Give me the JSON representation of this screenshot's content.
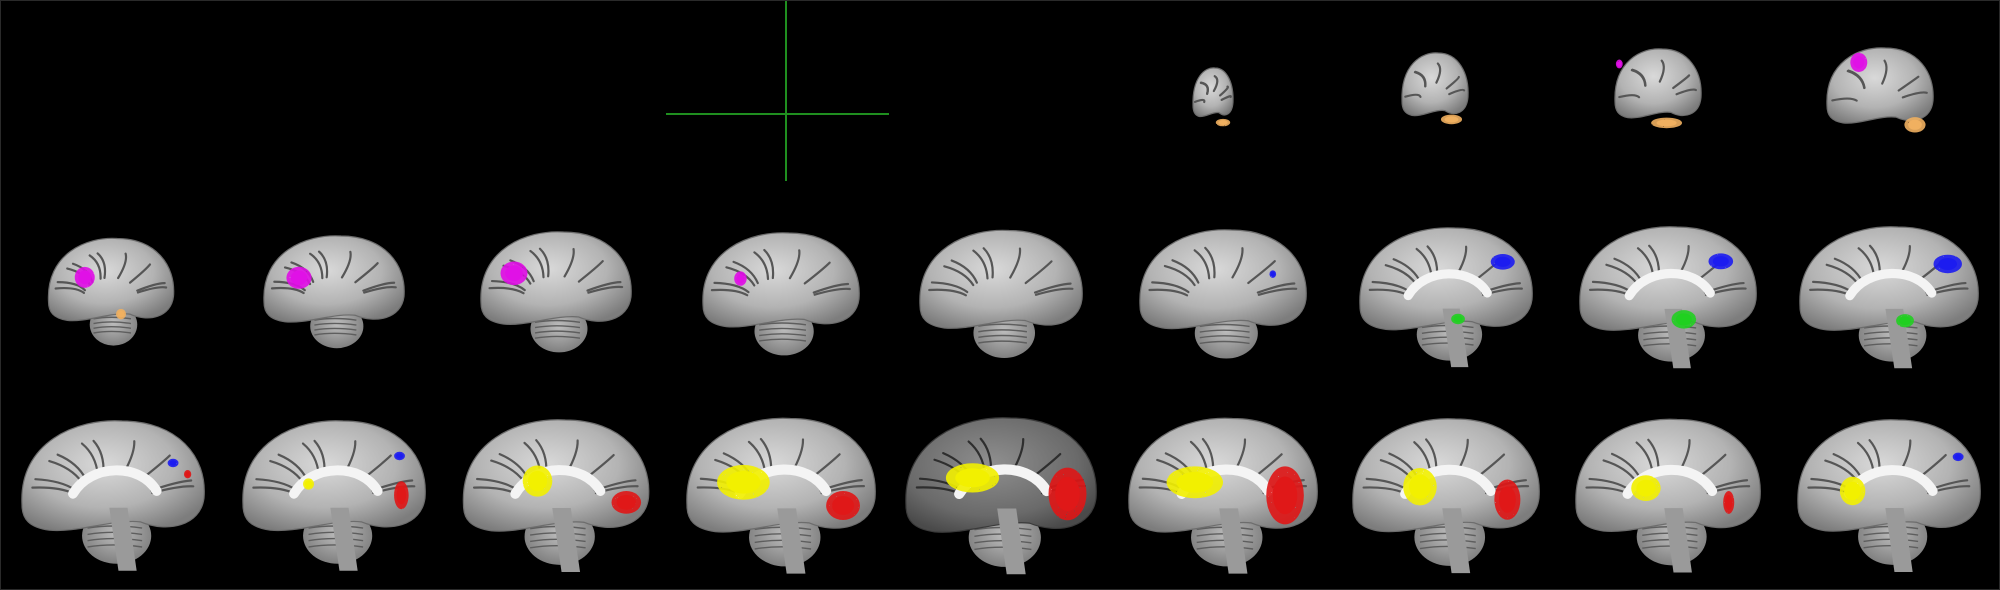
{
  "viewer": {
    "background": "#000000",
    "crosshair_color": "#1f8f1f",
    "overlay_colors": {
      "magenta": "#e011e6",
      "orange": "#f0b060",
      "blue": "#1c1cf0",
      "green": "#20d020",
      "yellow": "#f2f000",
      "red": "#e01818"
    },
    "grid": {
      "rows": 3,
      "columns": 9
    }
  }
}
